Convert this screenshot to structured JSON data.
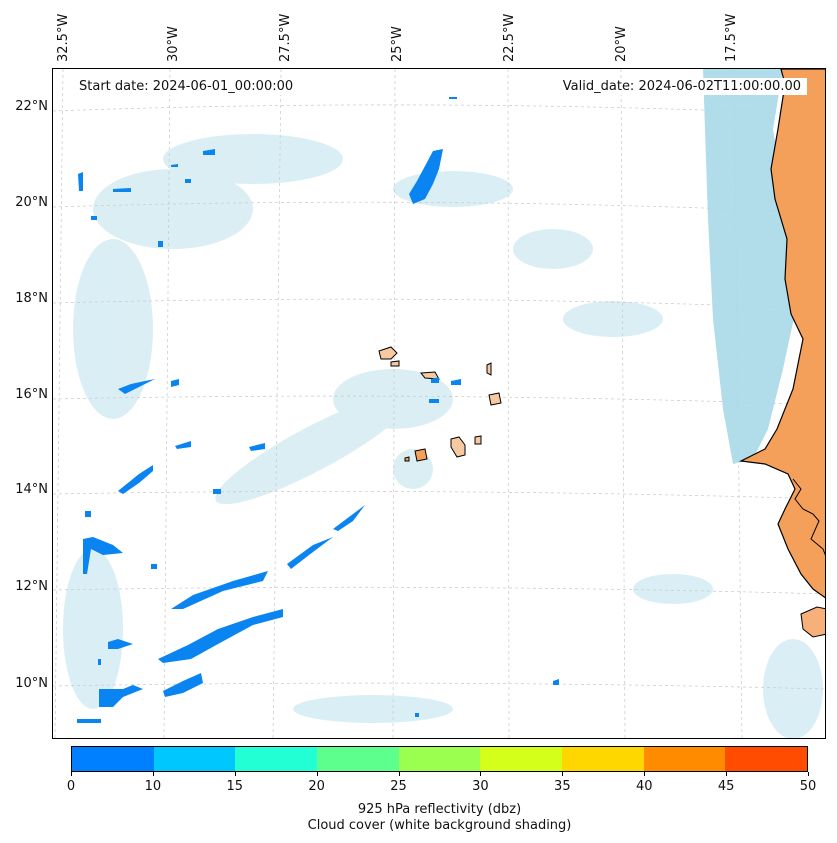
{
  "map": {
    "start_date": "Start date: 2024-06-01_00:00:00",
    "valid_date": "Valid_date: 2024-06-02T11:00:00.00",
    "lon_labels": [
      "32.5°W",
      "30°W",
      "27.5°W",
      "25°W",
      "22.5°W",
      "20°W",
      "17.5°W"
    ],
    "lat_labels": [
      "22°N",
      "20°N",
      "18°N",
      "16°N",
      "14°N",
      "12°N",
      "10°N"
    ],
    "land_color": "#f5a05a",
    "coast_shade_color": "#a8d8e8",
    "cloud_color": "#d4ecf3",
    "echo_color": "#0a84f0"
  },
  "colorbar": {
    "colors": [
      "#0080ff",
      "#00c8ff",
      "#22ffd5",
      "#5dff8d",
      "#9bff50",
      "#d4ff1b",
      "#ffd700",
      "#ff8c00",
      "#ff4c00"
    ],
    "ticks": [
      "0",
      "10",
      "15",
      "20",
      "25",
      "30",
      "35",
      "40",
      "45",
      "50"
    ],
    "label_line1": "925 hPa reflectivity (dbz)",
    "label_line2": "Cloud cover (white background shading)"
  }
}
